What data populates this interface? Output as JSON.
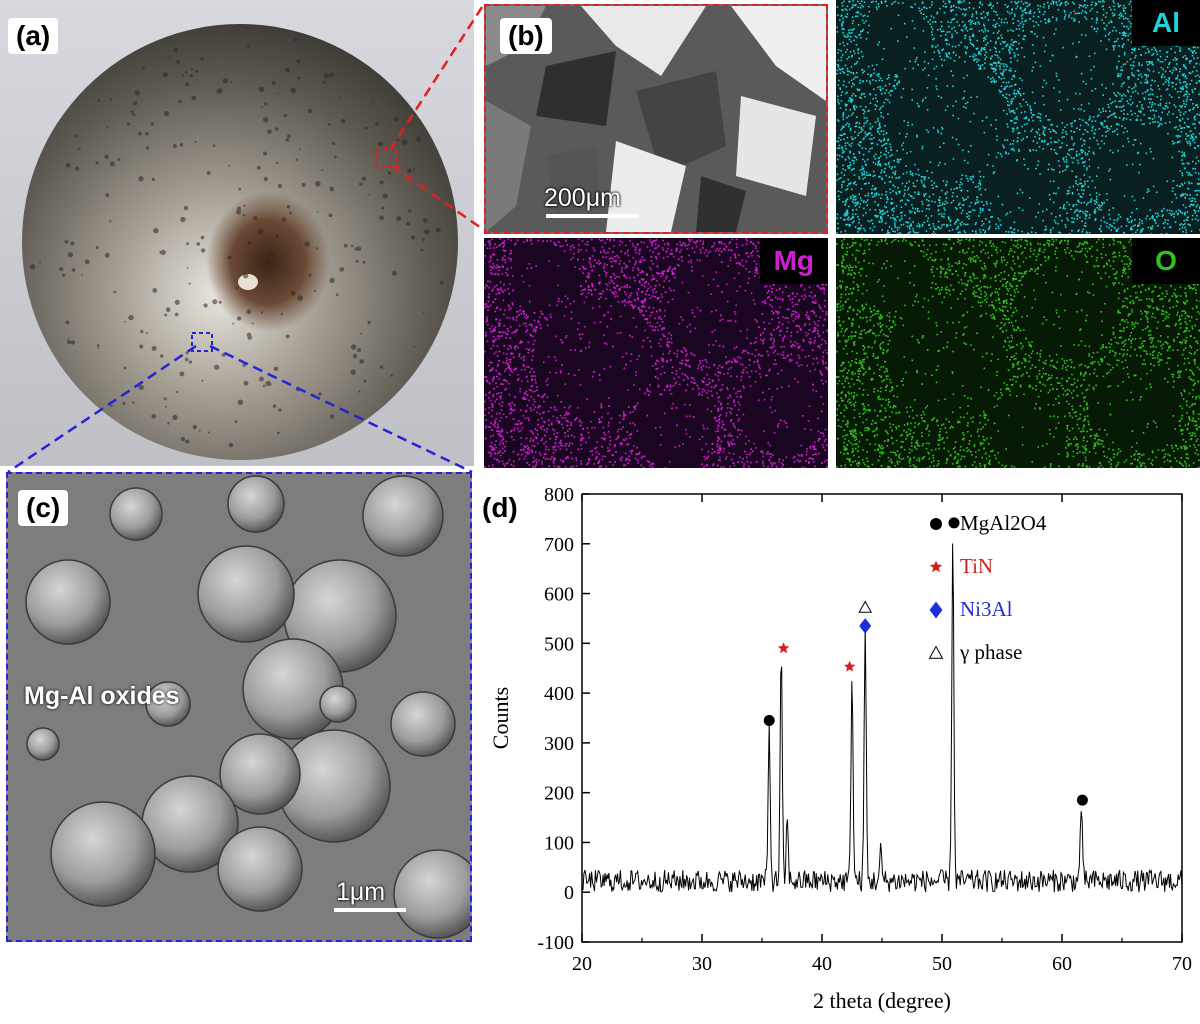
{
  "panels": {
    "a": {
      "label": "(a)"
    },
    "b": {
      "label": "(b)",
      "scale_bar": "200μm"
    },
    "maps": [
      {
        "element": "Al",
        "color": "#1fd5da"
      },
      {
        "element": "Mg",
        "color": "#d01fd3"
      },
      {
        "element": "O",
        "color": "#33c022"
      }
    ],
    "c": {
      "label": "(c)",
      "annotation": "Mg-Al oxides",
      "scale_bar": "1μm"
    },
    "d": {
      "label": "(d)"
    }
  },
  "chart_data": {
    "type": "line",
    "xlabel": "2 theta (degree)",
    "ylabel": "Counts",
    "xlim": [
      20,
      70
    ],
    "ylim": [
      -100,
      800
    ],
    "xticks": [
      20,
      30,
      40,
      50,
      60,
      70
    ],
    "yticks": [
      -100,
      0,
      100,
      200,
      300,
      400,
      500,
      600,
      700,
      800
    ],
    "baseline_noise": [
      0,
      45
    ],
    "peaks": [
      {
        "x": 35.6,
        "y": 305
      },
      {
        "x": 36.6,
        "y": 462
      },
      {
        "x": 37.1,
        "y": 120
      },
      {
        "x": 42.5,
        "y": 425
      },
      {
        "x": 43.6,
        "y": 505
      },
      {
        "x": 44.9,
        "y": 60
      },
      {
        "x": 50.9,
        "y": 705
      },
      {
        "x": 61.6,
        "y": 155
      }
    ],
    "markers": [
      {
        "x": 35.6,
        "y": 345,
        "symbol": "circle",
        "color": "#000000"
      },
      {
        "x": 36.8,
        "y": 490,
        "symbol": "star",
        "color": "#d42020"
      },
      {
        "x": 42.3,
        "y": 453,
        "symbol": "star",
        "color": "#d42020"
      },
      {
        "x": 43.6,
        "y": 535,
        "symbol": "diamond",
        "color": "#1f2fd6"
      },
      {
        "x": 43.6,
        "y": 572,
        "symbol": "triangle",
        "color": "#000000"
      },
      {
        "x": 51.0,
        "y": 742,
        "symbol": "circle",
        "color": "#000000"
      },
      {
        "x": 61.7,
        "y": 185,
        "symbol": "circle",
        "color": "#000000"
      }
    ],
    "legend": {
      "placement": "top-right",
      "entries": [
        {
          "symbol": "circle",
          "color": "#000000",
          "label": "MgAl2O4"
        },
        {
          "symbol": "star",
          "color": "#d42020",
          "label": "TiN"
        },
        {
          "symbol": "diamond",
          "color": "#1f2fd6",
          "label": "Ni3Al"
        },
        {
          "symbol": "triangle",
          "color": "#000000",
          "label": "γ phase"
        }
      ]
    }
  }
}
